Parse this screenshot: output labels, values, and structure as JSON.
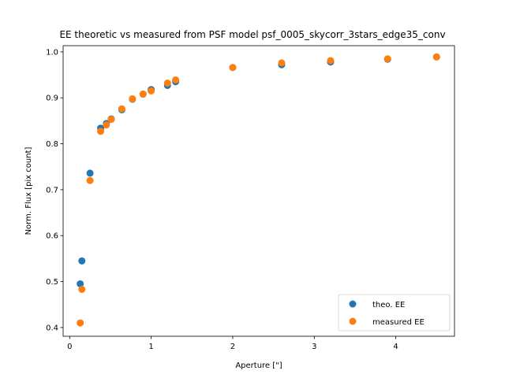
{
  "chart_data": {
    "type": "scatter",
    "title": "EE theoretic vs measured from PSF model psf_0005_skycorr_3stars_edge35_conv",
    "xlabel": "Aperture [\"]",
    "ylabel": "Norm. Flux [pix count]",
    "xlim": [
      -0.08,
      4.72
    ],
    "ylim": [
      0.381,
      1.0135
    ],
    "xticks": [
      0,
      1,
      2,
      3,
      4
    ],
    "yticks": [
      0.4,
      0.5,
      0.6,
      0.7,
      0.8,
      0.9,
      1.0
    ],
    "grid": false,
    "legend_position": "lower right",
    "series": [
      {
        "name": "theo. EE",
        "color": "#1f77b4",
        "x": [
          0.13,
          0.15,
          0.25,
          0.38,
          0.45,
          0.51,
          0.64,
          0.77,
          0.9,
          1.0,
          1.2,
          1.3,
          2.0,
          2.6,
          3.2,
          3.9,
          4.5
        ],
        "y": [
          0.495,
          0.545,
          0.736,
          0.834,
          0.844,
          0.854,
          0.874,
          0.897,
          0.908,
          0.918,
          0.927,
          0.935,
          0.966,
          0.972,
          0.978,
          0.984,
          0.989
        ]
      },
      {
        "name": "measured EE",
        "color": "#ff7f0e",
        "x": [
          0.13,
          0.15,
          0.25,
          0.38,
          0.45,
          0.51,
          0.64,
          0.77,
          0.9,
          1.0,
          1.2,
          1.3,
          2.0,
          2.6,
          3.2,
          3.9,
          4.5
        ],
        "y": [
          0.41,
          0.483,
          0.72,
          0.827,
          0.841,
          0.853,
          0.876,
          0.898,
          0.908,
          0.915,
          0.932,
          0.939,
          0.966,
          0.976,
          0.981,
          0.985,
          0.989
        ]
      }
    ]
  }
}
